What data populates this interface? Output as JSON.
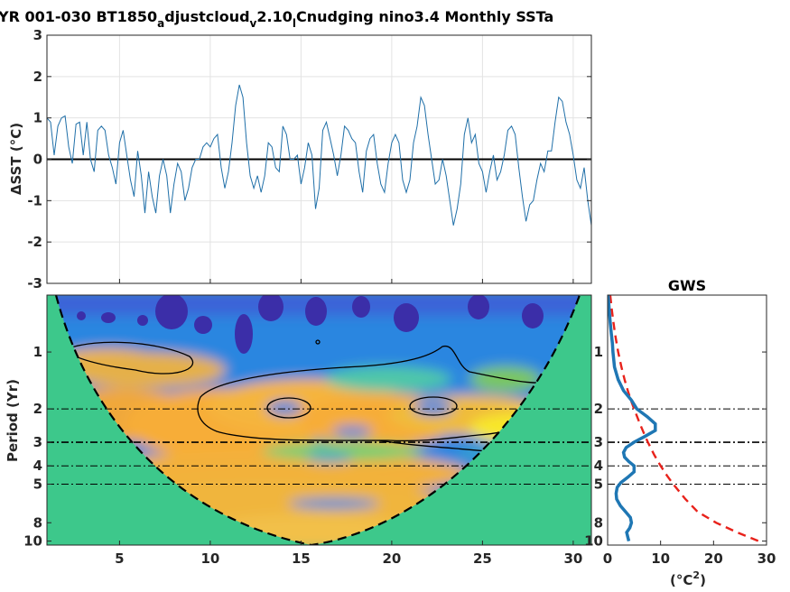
{
  "chart_data": [
    {
      "type": "line",
      "title_parts": [
        "YR 001-030 BT1850",
        "a",
        "djustcloud",
        "v",
        "2.10",
        "l",
        "Cnudging nino3.4 Monthly SSTa"
      ],
      "ylabel": "ΔSST (°C)",
      "xlim": [
        1,
        31
      ],
      "ylim": [
        -3,
        3
      ],
      "yticks": [
        "-3",
        "-2",
        "-1",
        "0",
        "1",
        "2",
        "3"
      ],
      "grid": true,
      "line_color": "#1f6fa8",
      "zero_line": 0,
      "series": [
        {
          "x": [
            1.0,
            1.2,
            1.4,
            1.6,
            1.8,
            2.0,
            2.2,
            2.4,
            2.6,
            2.8,
            3.0,
            3.2,
            3.4,
            3.6,
            3.8,
            4.0,
            4.2,
            4.4,
            4.6,
            4.8,
            5.0,
            5.2,
            5.4,
            5.6,
            5.8,
            6.0,
            6.2,
            6.4,
            6.6,
            6.8,
            7.0,
            7.2,
            7.4,
            7.6,
            7.8,
            8.0,
            8.2,
            8.4,
            8.6,
            8.8,
            9.0,
            9.2,
            9.4,
            9.6,
            9.8,
            10.0,
            10.2,
            10.4,
            10.6,
            10.8,
            11.0,
            11.2,
            11.4,
            11.6,
            11.8,
            12.0,
            12.2,
            12.4,
            12.6,
            12.8,
            13.0,
            13.2,
            13.4,
            13.6,
            13.8,
            14.0,
            14.2,
            14.4,
            14.6,
            14.8,
            15.0,
            15.2,
            15.4,
            15.6,
            15.8,
            16.0,
            16.2,
            16.4,
            16.6,
            16.8,
            17.0,
            17.2,
            17.4,
            17.6,
            17.8,
            18.0,
            18.2,
            18.4,
            18.6,
            18.8,
            19.0,
            19.2,
            19.4,
            19.6,
            19.8,
            20.0,
            20.2,
            20.4,
            20.6,
            20.8,
            21.0,
            21.2,
            21.4,
            21.6,
            21.8,
            22.0,
            22.2,
            22.4,
            22.6,
            22.8,
            23.0,
            23.2,
            23.4,
            23.6,
            23.8,
            24.0,
            24.2,
            24.4,
            24.6,
            24.8,
            25.0,
            25.2,
            25.4,
            25.6,
            25.8,
            26.0,
            26.2,
            26.4,
            26.6,
            26.8,
            27.0,
            27.2,
            27.4,
            27.6,
            27.8,
            28.0,
            28.2,
            28.4,
            28.6,
            28.8,
            29.0,
            29.2,
            29.4,
            29.6,
            29.8,
            30.0,
            30.2,
            30.4,
            30.6,
            30.8,
            31.0
          ],
          "values": [
            1.0,
            0.9,
            0.1,
            0.8,
            1.0,
            1.05,
            0.3,
            -0.1,
            0.85,
            0.9,
            0.1,
            0.9,
            0.0,
            -0.3,
            0.7,
            0.8,
            0.7,
            0.1,
            -0.2,
            -0.6,
            0.4,
            0.7,
            0.1,
            -0.5,
            -0.9,
            0.2,
            -0.4,
            -1.3,
            -0.3,
            -0.9,
            -1.3,
            -0.4,
            0.0,
            -0.4,
            -1.3,
            -0.6,
            -0.1,
            -0.3,
            -1.0,
            -0.7,
            -0.2,
            0.0,
            0.0,
            0.3,
            0.4,
            0.3,
            0.5,
            0.6,
            -0.2,
            -0.7,
            -0.3,
            0.4,
            1.3,
            1.8,
            1.5,
            0.4,
            -0.4,
            -0.7,
            -0.4,
            -0.8,
            -0.4,
            0.4,
            0.3,
            -0.2,
            -0.3,
            0.8,
            0.6,
            0.0,
            0.0,
            0.1,
            -0.6,
            -0.2,
            0.4,
            0.1,
            -1.2,
            -0.7,
            0.7,
            0.9,
            0.5,
            0.1,
            -0.4,
            0.1,
            0.8,
            0.7,
            0.5,
            0.4,
            -0.3,
            -0.8,
            0.2,
            0.5,
            0.6,
            -0.1,
            -0.6,
            -0.8,
            -0.1,
            0.4,
            0.6,
            0.4,
            -0.5,
            -0.8,
            -0.5,
            0.4,
            0.8,
            1.5,
            1.3,
            0.6,
            0.0,
            -0.6,
            -0.5,
            0.0,
            -0.4,
            -1.0,
            -1.6,
            -1.2,
            -0.6,
            0.6,
            1.0,
            0.4,
            0.6,
            -0.1,
            -0.3,
            -0.8,
            -0.3,
            0.1,
            -0.5,
            -0.3,
            0.1,
            0.7,
            0.8,
            0.6,
            -0.2,
            -0.9,
            -1.5,
            -1.1,
            -1.0,
            -0.5,
            -0.1,
            -0.3,
            0.2,
            0.2,
            0.9,
            1.5,
            1.4,
            0.9,
            0.6,
            0.1,
            -0.5,
            -0.7,
            -0.2,
            -1.0,
            -1.6
          ]
        }
      ]
    },
    {
      "type": "heatmap",
      "ylabel": "Period (Yr)",
      "xticks": [
        "5",
        "10",
        "15",
        "20",
        "25",
        "30"
      ],
      "yticks": [
        "1",
        "2",
        "3",
        "4",
        "5",
        "8",
        "10"
      ],
      "xlim": [
        1,
        31
      ],
      "ylim_period": [
        0.5,
        10.5
      ],
      "y_scale": "log",
      "colormap": "parula",
      "reference_lines_period": [
        2,
        3,
        4,
        5
      ]
    },
    {
      "type": "line",
      "title": "GWS",
      "xlabel": "(°C",
      "xlabel_sup": "2",
      "xlabel_end": ")",
      "xticks": [
        "0",
        "10",
        "20",
        "30"
      ],
      "yticks": [
        "1",
        "2",
        "3",
        "4",
        "5",
        "8",
        "10"
      ],
      "xlim": [
        0,
        30
      ],
      "y_scale": "log",
      "series": [
        {
          "style": "solid",
          "color": "#1f77b4",
          "period": [
            0.5,
            0.6,
            0.7,
            0.8,
            0.9,
            1.0,
            1.2,
            1.4,
            1.6,
            1.8,
            2.0,
            2.2,
            2.4,
            2.6,
            2.8,
            3.0,
            3.2,
            3.4,
            3.6,
            3.8,
            4.0,
            4.3,
            4.6,
            4.9,
            5.2,
            5.6,
            6.0,
            6.5,
            7.0,
            7.5,
            8.0,
            8.5,
            9.0,
            9.5,
            10.0
          ],
          "power": [
            0.1,
            0.3,
            0.5,
            0.7,
            0.9,
            1.0,
            1.3,
            2.0,
            3.0,
            4.5,
            5.5,
            7.5,
            9.0,
            9.0,
            7.0,
            5.0,
            3.5,
            3.0,
            3.2,
            4.0,
            5.0,
            5.0,
            3.8,
            2.5,
            1.8,
            1.6,
            1.7,
            2.4,
            3.4,
            4.3,
            4.5,
            4.2,
            3.6,
            3.8,
            4.0
          ]
        },
        {
          "style": "dashed",
          "color": "#e8221b",
          "period": [
            0.5,
            0.6,
            0.7,
            0.8,
            0.9,
            1.0,
            1.2,
            1.4,
            1.6,
            1.8,
            2.0,
            2.4,
            2.8,
            3.0,
            3.5,
            4.0,
            4.5,
            5.0,
            6.0,
            7.0,
            8.0,
            9.0,
            10.0
          ],
          "power": [
            0.5,
            0.8,
            1.1,
            1.4,
            1.7,
            2.0,
            2.6,
            3.2,
            3.8,
            4.4,
            5.0,
            6.1,
            7.1,
            7.6,
            8.8,
            10.0,
            11.2,
            12.4,
            14.7,
            17.0,
            20.5,
            24.5,
            28.5
          ]
        }
      ]
    }
  ]
}
